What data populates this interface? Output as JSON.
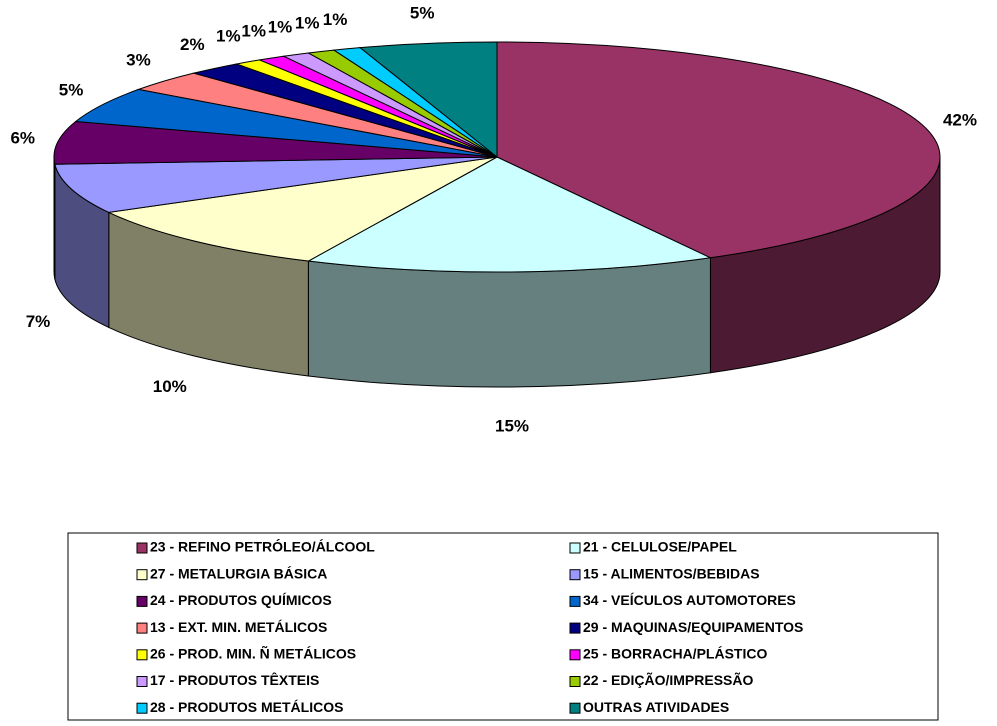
{
  "chart_data": {
    "type": "pie",
    "categories": [
      "23 - REFINO PETRÓLEO/ÁLCOOL",
      "21 - CELULOSE/PAPEL",
      "27 - METALURGIA BÁSICA",
      "15 - ALIMENTOS/BEBIDAS",
      "24 - PRODUTOS QUÍMICOS",
      "34 - VEÍCULOS AUTOMOTORES",
      "13 - EXT. MIN. METÁLICOS",
      "29 - MAQUINAS/EQUIPAMENTOS",
      "26 - PROD. MIN. Ñ METÁLICOS",
      "25 - BORRACHA/PLÁSTICO",
      "17 - PRODUTOS TÊXTEIS",
      "22 - EDIÇÃO/IMPRESSÃO",
      "28 - PRODUTOS METÁLICOS",
      "OUTRAS ATIVIDADES"
    ],
    "values": [
      42,
      15,
      10,
      7,
      6,
      5,
      3,
      2,
      1,
      1,
      1,
      1,
      1,
      5
    ],
    "value_labels": [
      "42%",
      "15%",
      "10%",
      "7%",
      "6%",
      "5%",
      "3%",
      "2%",
      "1%",
      "1%",
      "1%",
      "1%",
      "1%",
      "5%"
    ],
    "colors": [
      "#993366",
      "#CCFFFF",
      "#FFFFCC",
      "#9999FF",
      "#660066",
      "#0066CC",
      "#FF8080",
      "#000080",
      "#FFFF00",
      "#FF00FF",
      "#CC99FF",
      "#99CC00",
      "#00CCFF",
      "#008080"
    ],
    "legend": "bottom"
  }
}
